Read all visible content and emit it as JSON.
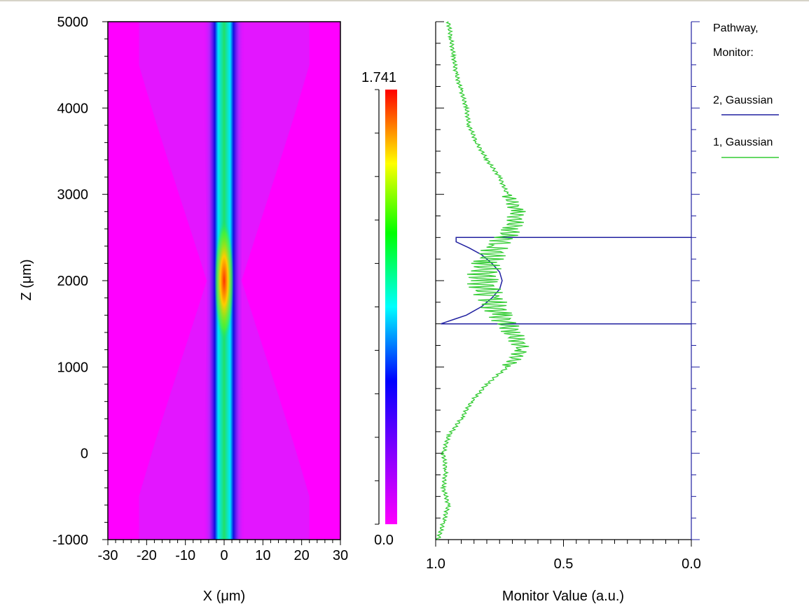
{
  "chart_data": [
    {
      "type": "heatmap",
      "title": "",
      "xlabel": "X (μm)",
      "ylabel": "Z (μm)",
      "xlim": [
        -30,
        30
      ],
      "ylim": [
        -1000,
        5000
      ],
      "xticks": [
        "-30",
        "-20",
        "-10",
        "0",
        "10",
        "20",
        "30"
      ],
      "yticks": [
        "-1000",
        "0",
        "1000",
        "2000",
        "3000",
        "4000",
        "5000"
      ],
      "colorbar": {
        "min_label": "0.0",
        "max_label": "1.741",
        "min": 0.0,
        "max": 1.741,
        "colors": [
          "#ff00ff",
          "#8000ff",
          "#0000ff",
          "#00ffff",
          "#00ff00",
          "#ffff00",
          "#ff0000"
        ]
      },
      "beam": {
        "focus_z": 2000,
        "waist_half_width_um": 4.5,
        "far_half_width_um": 5.5,
        "halo_half_width_um": 22
      }
    },
    {
      "type": "line",
      "title": "",
      "xlabel": "Monitor Value (a.u.)",
      "ylabel": "",
      "xlim": [
        1.0,
        0.0
      ],
      "ylim": [
        -1000,
        5000
      ],
      "xticks": [
        "1.0",
        "0.5",
        "0.0"
      ],
      "legend_title": [
        "Pathway,",
        "Monitor:"
      ],
      "legend_position": "right",
      "series": [
        {
          "name": "2, Gaussian",
          "color": "#2020a0",
          "points": [
            [
              0.0,
              2500
            ],
            [
              0.92,
              2500
            ],
            [
              0.92,
              2450
            ],
            [
              0.87,
              2380
            ],
            [
              0.82,
              2300
            ],
            [
              0.78,
              2200
            ],
            [
              0.75,
              2100
            ],
            [
              0.74,
              2000
            ],
            [
              0.75,
              1900
            ],
            [
              0.78,
              1800
            ],
            [
              0.82,
              1700
            ],
            [
              0.88,
              1600
            ],
            [
              0.93,
              1550
            ],
            [
              0.98,
              1500
            ],
            [
              0.0,
              1500
            ]
          ]
        },
        {
          "name": "1, Gaussian",
          "color": "#33cc33",
          "points": [
            [
              0.95,
              5000
            ],
            [
              0.94,
              4800
            ],
            [
              0.93,
              4600
            ],
            [
              0.92,
              4400
            ],
            [
              0.9,
              4200
            ],
            [
              0.88,
              4000
            ],
            [
              0.87,
              3800
            ],
            [
              0.84,
              3600
            ],
            [
              0.8,
              3400
            ],
            [
              0.75,
              3200
            ],
            [
              0.72,
              3000
            ],
            [
              0.68,
              2800
            ],
            [
              0.7,
              2600
            ],
            [
              0.76,
              2400
            ],
            [
              0.8,
              2200
            ],
            [
              0.82,
              2000
            ],
            [
              0.79,
              1800
            ],
            [
              0.75,
              1600
            ],
            [
              0.7,
              1400
            ],
            [
              0.66,
              1200
            ],
            [
              0.72,
              1000
            ],
            [
              0.8,
              800
            ],
            [
              0.86,
              600
            ],
            [
              0.9,
              400
            ],
            [
              0.95,
              200
            ],
            [
              0.97,
              0
            ],
            [
              0.96,
              -200
            ],
            [
              0.97,
              -400
            ],
            [
              0.95,
              -600
            ],
            [
              0.97,
              -800
            ],
            [
              0.99,
              -1000
            ]
          ]
        }
      ]
    }
  ]
}
